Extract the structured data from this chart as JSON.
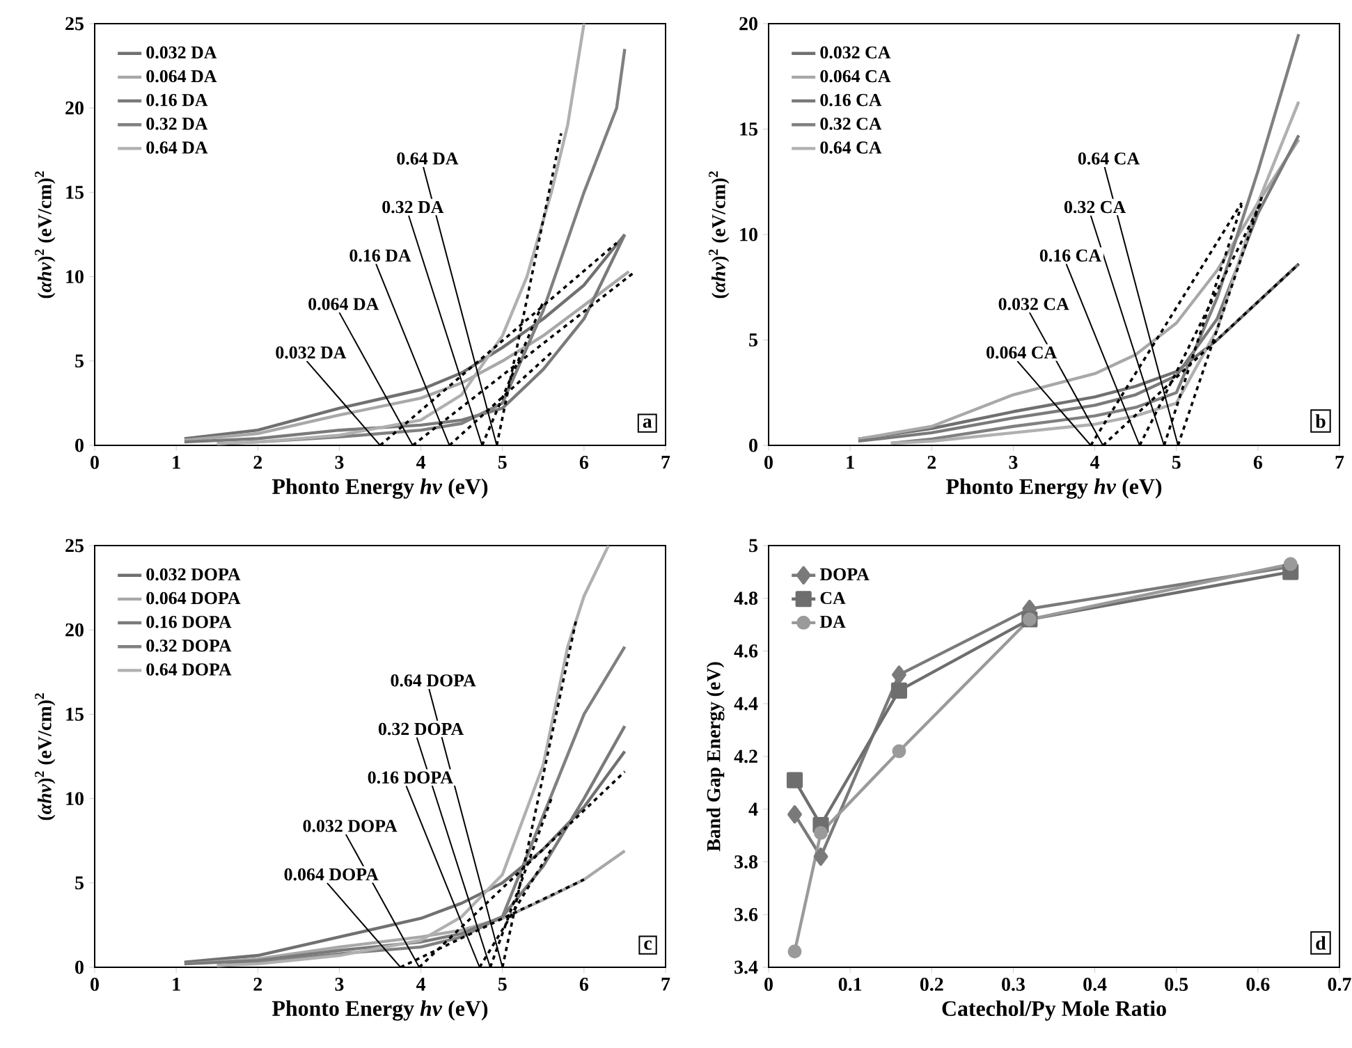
{
  "chart_data": [
    {
      "type": "line",
      "xlabel": "Phonto Energy *hv* (eV)",
      "ylabel": "(*αhv*)$^{2}$ (eV/cm)$^{2}$",
      "xlim": [
        0,
        7
      ],
      "ylim": [
        0,
        25
      ],
      "xticks": [
        0,
        1,
        2,
        3,
        4,
        5,
        6,
        7
      ],
      "yticks": [
        0,
        5,
        10,
        15,
        20,
        25
      ],
      "legend": "top left",
      "annotations": [
        {
          "text": "0.032 DA",
          "x": 3.5,
          "y": 0
        },
        {
          "text": "0.064 DA",
          "x": 3.9,
          "y": 0
        },
        {
          "text": "0.16 DA",
          "x": 4.35,
          "y": 0
        },
        {
          "text": "0.32 DA",
          "x": 4.75,
          "y": 0
        },
        {
          "text": "0.64 DA",
          "x": 4.93,
          "y": 0
        },
        "a"
      ],
      "series": [
        {
          "name": "0.032 DA",
          "type": "line",
          "color": "#707070",
          "line_style": "solid",
          "x": [
            1.1,
            2,
            3,
            4,
            4.5,
            5,
            5.5,
            6,
            6.5
          ],
          "values": [
            0.4,
            0.9,
            2.2,
            3.3,
            4.3,
            5.8,
            7.5,
            9.5,
            12.5
          ]
        },
        {
          "name": "0.064 DA",
          "type": "line",
          "color": "#a8a8a8",
          "line_style": "solid",
          "x": [
            1.1,
            2,
            3,
            4,
            4.5,
            5,
            5.5,
            6,
            6.55
          ],
          "values": [
            0.3,
            0.7,
            1.8,
            2.8,
            3.7,
            5,
            6.5,
            8.3,
            10.3
          ]
        },
        {
          "name": "0.16 DA",
          "type": "line",
          "color": "#7a7a7a",
          "line_style": "solid",
          "x": [
            1.1,
            2,
            3,
            4,
            4.5,
            5,
            5.5,
            6,
            6.5
          ],
          "values": [
            0.2,
            0.4,
            0.9,
            1.2,
            1.5,
            2.2,
            4.5,
            7.5,
            12.5
          ]
        },
        {
          "name": "0.32 DA",
          "type": "line",
          "color": "#808080",
          "line_style": "solid",
          "x": [
            1.5,
            2,
            3,
            4,
            4.5,
            5,
            5.5,
            6,
            6.4,
            6.5
          ],
          "values": [
            0.1,
            0.2,
            0.5,
            0.9,
            1.3,
            2.5,
            8,
            15,
            20,
            23.5
          ]
        },
        {
          "name": "0.64 DA",
          "type": "line",
          "color": "#b0b0b0",
          "line_style": "solid",
          "x": [
            1.5,
            2,
            3,
            4,
            4.5,
            5,
            5.3,
            5.6,
            5.8,
            6
          ],
          "values": [
            0.1,
            0.2,
            0.6,
            1.5,
            3,
            6.5,
            10,
            15,
            19,
            25
          ]
        },
        {
          "type": "line",
          "color": "#000000",
          "line_style": "dashed",
          "x": [
            3.5,
            6.4
          ],
          "values": [
            0,
            12
          ]
        },
        {
          "type": "line",
          "color": "#000000",
          "line_style": "dashed",
          "x": [
            3.9,
            6.6
          ],
          "values": [
            0,
            10.2
          ]
        },
        {
          "type": "line",
          "color": "#000000",
          "line_style": "dashed",
          "x": [
            4.35,
            5.6
          ],
          "values": [
            0,
            5.5
          ]
        },
        {
          "type": "line",
          "color": "#000000",
          "line_style": "dashed",
          "x": [
            4.75,
            5.5
          ],
          "values": [
            0,
            8.5
          ]
        },
        {
          "type": "line",
          "color": "#000000",
          "line_style": "dashed",
          "x": [
            4.93,
            5.72
          ],
          "values": [
            0,
            18.5
          ]
        }
      ]
    },
    {
      "type": "line",
      "xlabel": "Phonto Energy *hv* (eV)",
      "ylabel": "(*αhv*)$^{2}$ (eV/cm)$^{2}$",
      "xlim": [
        0,
        7
      ],
      "ylim": [
        0,
        20
      ],
      "xticks": [
        0,
        1,
        2,
        3,
        4,
        5,
        6,
        7
      ],
      "yticks": [
        0,
        5,
        10,
        15,
        20
      ],
      "legend": "top left",
      "annotations": [
        {
          "text": "0.064 CA",
          "x": 3.95,
          "y": 0
        },
        {
          "text": "0.032 CA",
          "x": 4.1,
          "y": 0
        },
        {
          "text": "0.16 CA",
          "x": 4.55,
          "y": 0
        },
        {
          "text": "0.32 CA",
          "x": 4.85,
          "y": 0
        },
        {
          "text": "0.64 CA",
          "x": 5.02,
          "y": 0
        },
        "b"
      ],
      "series": [
        {
          "name": "0.032 CA",
          "type": "line",
          "color": "#707070",
          "line_style": "solid",
          "x": [
            1.1,
            2,
            3,
            4,
            4.5,
            5,
            5.5,
            6,
            6.5
          ],
          "values": [
            0.3,
            0.8,
            1.6,
            2.3,
            2.8,
            3.5,
            5,
            6.8,
            8.6
          ]
        },
        {
          "name": "0.064 CA",
          "type": "line",
          "color": "#a8a8a8",
          "line_style": "solid",
          "x": [
            1.1,
            2,
            3,
            4,
            4.5,
            5,
            5.5,
            6,
            6.5
          ],
          "values": [
            0.3,
            0.9,
            2.4,
            3.4,
            4.3,
            5.8,
            8.3,
            11.5,
            14.5
          ]
        },
        {
          "name": "0.16 CA",
          "type": "line",
          "color": "#7a7a7a",
          "line_style": "solid",
          "x": [
            1.1,
            2,
            3,
            4,
            4.5,
            5,
            5.5,
            6,
            6.5
          ],
          "values": [
            0.2,
            0.6,
            1.3,
            1.9,
            2.4,
            3.3,
            6,
            11,
            14.7
          ]
        },
        {
          "name": "0.32 CA",
          "type": "line",
          "color": "#808080",
          "line_style": "solid",
          "x": [
            1.5,
            2,
            3,
            4,
            4.5,
            5,
            5.5,
            6,
            6.5
          ],
          "values": [
            0.1,
            0.3,
            0.9,
            1.4,
            1.8,
            2.5,
            7,
            13,
            19.5
          ]
        },
        {
          "name": "0.64 CA",
          "type": "line",
          "color": "#b0b0b0",
          "line_style": "solid",
          "x": [
            1.5,
            2,
            3,
            4,
            4.5,
            5,
            5.5,
            6,
            6.5
          ],
          "values": [
            0.1,
            0.2,
            0.6,
            1,
            1.4,
            2,
            5.5,
            11.5,
            16.3
          ]
        },
        {
          "type": "line",
          "color": "#000000",
          "line_style": "dashed",
          "x": [
            4.1,
            6.5
          ],
          "values": [
            0,
            8.6
          ]
        },
        {
          "type": "line",
          "color": "#000000",
          "line_style": "dashed",
          "x": [
            3.95,
            5.8
          ],
          "values": [
            0,
            11.5
          ]
        },
        {
          "type": "line",
          "color": "#000000",
          "line_style": "dashed",
          "x": [
            4.55,
            6.05
          ],
          "values": [
            0,
            11.6
          ]
        },
        {
          "type": "line",
          "color": "#000000",
          "line_style": "dashed",
          "x": [
            4.85,
            5.8
          ],
          "values": [
            0,
            11.4
          ]
        },
        {
          "type": "line",
          "color": "#000000",
          "line_style": "dashed",
          "x": [
            5.02,
            6.05
          ],
          "values": [
            0,
            11.8
          ]
        }
      ]
    },
    {
      "type": "line",
      "xlabel": "Phonto Energy *hv* (eV)",
      "ylabel": "(*αhv*)$^{2}$ (eV/cm)$^{2}$",
      "xlim": [
        0,
        7
      ],
      "ylim": [
        0,
        25
      ],
      "xticks": [
        0,
        1,
        2,
        3,
        4,
        5,
        6,
        7
      ],
      "yticks": [
        0,
        5,
        10,
        15,
        20,
        25
      ],
      "legend": "top left",
      "annotations": [
        {
          "text": "0.064 DOPA",
          "x": 3.75,
          "y": 0
        },
        {
          "text": "0.032 DOPA",
          "x": 3.98,
          "y": 0
        },
        {
          "text": "0.16 DOPA",
          "x": 4.72,
          "y": 0
        },
        {
          "text": "0.32 DOPA",
          "x": 4.85,
          "y": 0
        },
        {
          "text": "0.64 DOPA",
          "x": 5.0,
          "y": 0
        },
        "c"
      ],
      "series": [
        {
          "name": "0.032 DOPA",
          "type": "line",
          "color": "#707070",
          "line_style": "solid",
          "x": [
            1.1,
            2,
            3,
            4,
            4.5,
            5,
            5.5,
            6,
            6.5
          ],
          "values": [
            0.3,
            0.7,
            1.8,
            2.9,
            3.8,
            5,
            7,
            9.5,
            12.8
          ]
        },
        {
          "name": "0.064 DOPA",
          "type": "line",
          "color": "#a8a8a8",
          "line_style": "solid",
          "x": [
            1.1,
            2,
            3,
            4,
            4.5,
            5,
            5.5,
            6,
            6.5
          ],
          "values": [
            0.2,
            0.5,
            1.2,
            1.8,
            2.2,
            2.9,
            4,
            5.2,
            6.9
          ]
        },
        {
          "name": "0.16 DOPA",
          "type": "line",
          "color": "#7a7a7a",
          "line_style": "solid",
          "x": [
            1.1,
            2,
            3,
            4,
            4.5,
            5,
            5.5,
            6,
            6.5
          ],
          "values": [
            0.2,
            0.4,
            1,
            1.5,
            2,
            3,
            6,
            10,
            14.3
          ]
        },
        {
          "name": "0.32 DOPA",
          "type": "line",
          "color": "#808080",
          "line_style": "solid",
          "x": [
            1.5,
            2,
            3,
            4,
            4.5,
            5,
            5.5,
            6,
            6.5
          ],
          "values": [
            0.1,
            0.3,
            0.8,
            1.2,
            1.8,
            3,
            9,
            15,
            19
          ]
        },
        {
          "name": "0.64 DOPA",
          "type": "line",
          "color": "#b0b0b0",
          "line_style": "solid",
          "x": [
            1.5,
            2,
            3,
            4,
            4.5,
            5,
            5.5,
            5.8,
            6,
            6.3
          ],
          "values": [
            0.1,
            0.2,
            0.7,
            1.6,
            3,
            5.5,
            12,
            19,
            22,
            25
          ]
        },
        {
          "type": "line",
          "color": "#000000",
          "line_style": "dashed",
          "x": [
            3.98,
            6.5
          ],
          "values": [
            0,
            11.6
          ]
        },
        {
          "type": "line",
          "color": "#000000",
          "line_style": "dashed",
          "x": [
            3.75,
            6
          ],
          "values": [
            0,
            5.2
          ]
        },
        {
          "type": "line",
          "color": "#000000",
          "line_style": "dashed",
          "x": [
            4.72,
            5.6
          ],
          "values": [
            0,
            7
          ]
        },
        {
          "type": "line",
          "color": "#000000",
          "line_style": "dashed",
          "x": [
            4.85,
            5.6
          ],
          "values": [
            0,
            10
          ]
        },
        {
          "type": "line",
          "color": "#000000",
          "line_style": "dashed",
          "x": [
            5.0,
            5.9
          ],
          "values": [
            0,
            20.5
          ]
        }
      ]
    },
    {
      "type": "line",
      "xlabel": "Catechol/Py Mole Ratio",
      "ylabel": "Band Gap Energy (eV)",
      "xlim": [
        0,
        0.7
      ],
      "ylim": [
        3.4,
        5
      ],
      "xticks": [
        0,
        0.1,
        0.2,
        0.3,
        0.4,
        0.5,
        0.6,
        0.7
      ],
      "yticks": [
        3.4,
        3.6,
        3.8,
        4,
        4.2,
        4.4,
        4.6,
        4.8,
        5
      ],
      "legend": "top left",
      "annotations": [
        "d"
      ],
      "series": [
        {
          "name": "DOPA",
          "type": "line",
          "color": "#7a7a7a",
          "line_style": "solid",
          "marker": "diamond",
          "x": [
            0.032,
            0.064,
            0.16,
            0.32,
            0.64
          ],
          "values": [
            3.98,
            3.82,
            4.51,
            4.76,
            4.92
          ]
        },
        {
          "name": "CA",
          "type": "line",
          "color": "#6e6e6e",
          "line_style": "solid",
          "marker": "square",
          "x": [
            0.032,
            0.064,
            0.16,
            0.32,
            0.64
          ],
          "values": [
            4.11,
            3.94,
            4.45,
            4.72,
            4.9
          ]
        },
        {
          "name": "DA",
          "type": "line",
          "color": "#9a9a9a",
          "line_style": "solid",
          "marker": "circle",
          "x": [
            0.032,
            0.064,
            0.16,
            0.32,
            0.64
          ],
          "values": [
            3.46,
            3.91,
            4.22,
            4.72,
            4.93
          ]
        }
      ]
    }
  ]
}
